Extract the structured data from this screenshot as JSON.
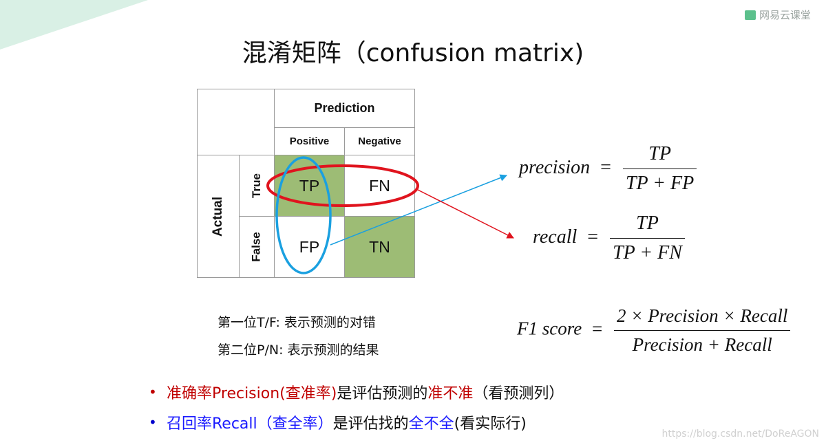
{
  "logo": {
    "text": "网易云课堂",
    "icon": "netease-cloud-classroom-logo"
  },
  "title": "混淆矩阵（confusion matrix)",
  "matrix": {
    "prediction": "Prediction",
    "positive": "Positive",
    "negative": "Negative",
    "actual": "Actual",
    "true_label": "True",
    "false_label": "False",
    "tp": "TP",
    "fn": "FN",
    "fp": "FP",
    "tn": "TN",
    "highlight_color": "#9dbc75",
    "red_ellipse_color": "#e0141e",
    "blue_ellipse_color": "#1aa0e0"
  },
  "notes": {
    "line1": "第一位T/F: 表示预测的对错",
    "line2": "第二位P/N: 表示预测的结果"
  },
  "formulas": {
    "precision": {
      "lhs": "precision",
      "eq": "=",
      "num": "TP",
      "den": "TP + FP"
    },
    "recall": {
      "lhs": "recall",
      "eq": "=",
      "num": "TP",
      "den": "TP + FN"
    },
    "f1": {
      "lhs": "F1 score",
      "eq": "=",
      "num": "2 × Precision × Recall",
      "den": "Precision + Recall"
    }
  },
  "bullets": {
    "b1": {
      "red_part": "准确率Precision(查准率)",
      "mid": "是评估预测的",
      "red_part2": "准不准",
      "end": "（看预测列）"
    },
    "b2": {
      "blue_part": "召回率Recall（查全率）",
      "mid": "是评估找的",
      "blue_part2": "全不全",
      "end": "(看实际行)"
    }
  },
  "watermark": "https://blog.csdn.net/DoReAGON",
  "colors": {
    "accent_red": "#c00000",
    "accent_blue": "#1a1aff",
    "corner": "#d9f0e5",
    "logo_green": "#5cc08c"
  }
}
